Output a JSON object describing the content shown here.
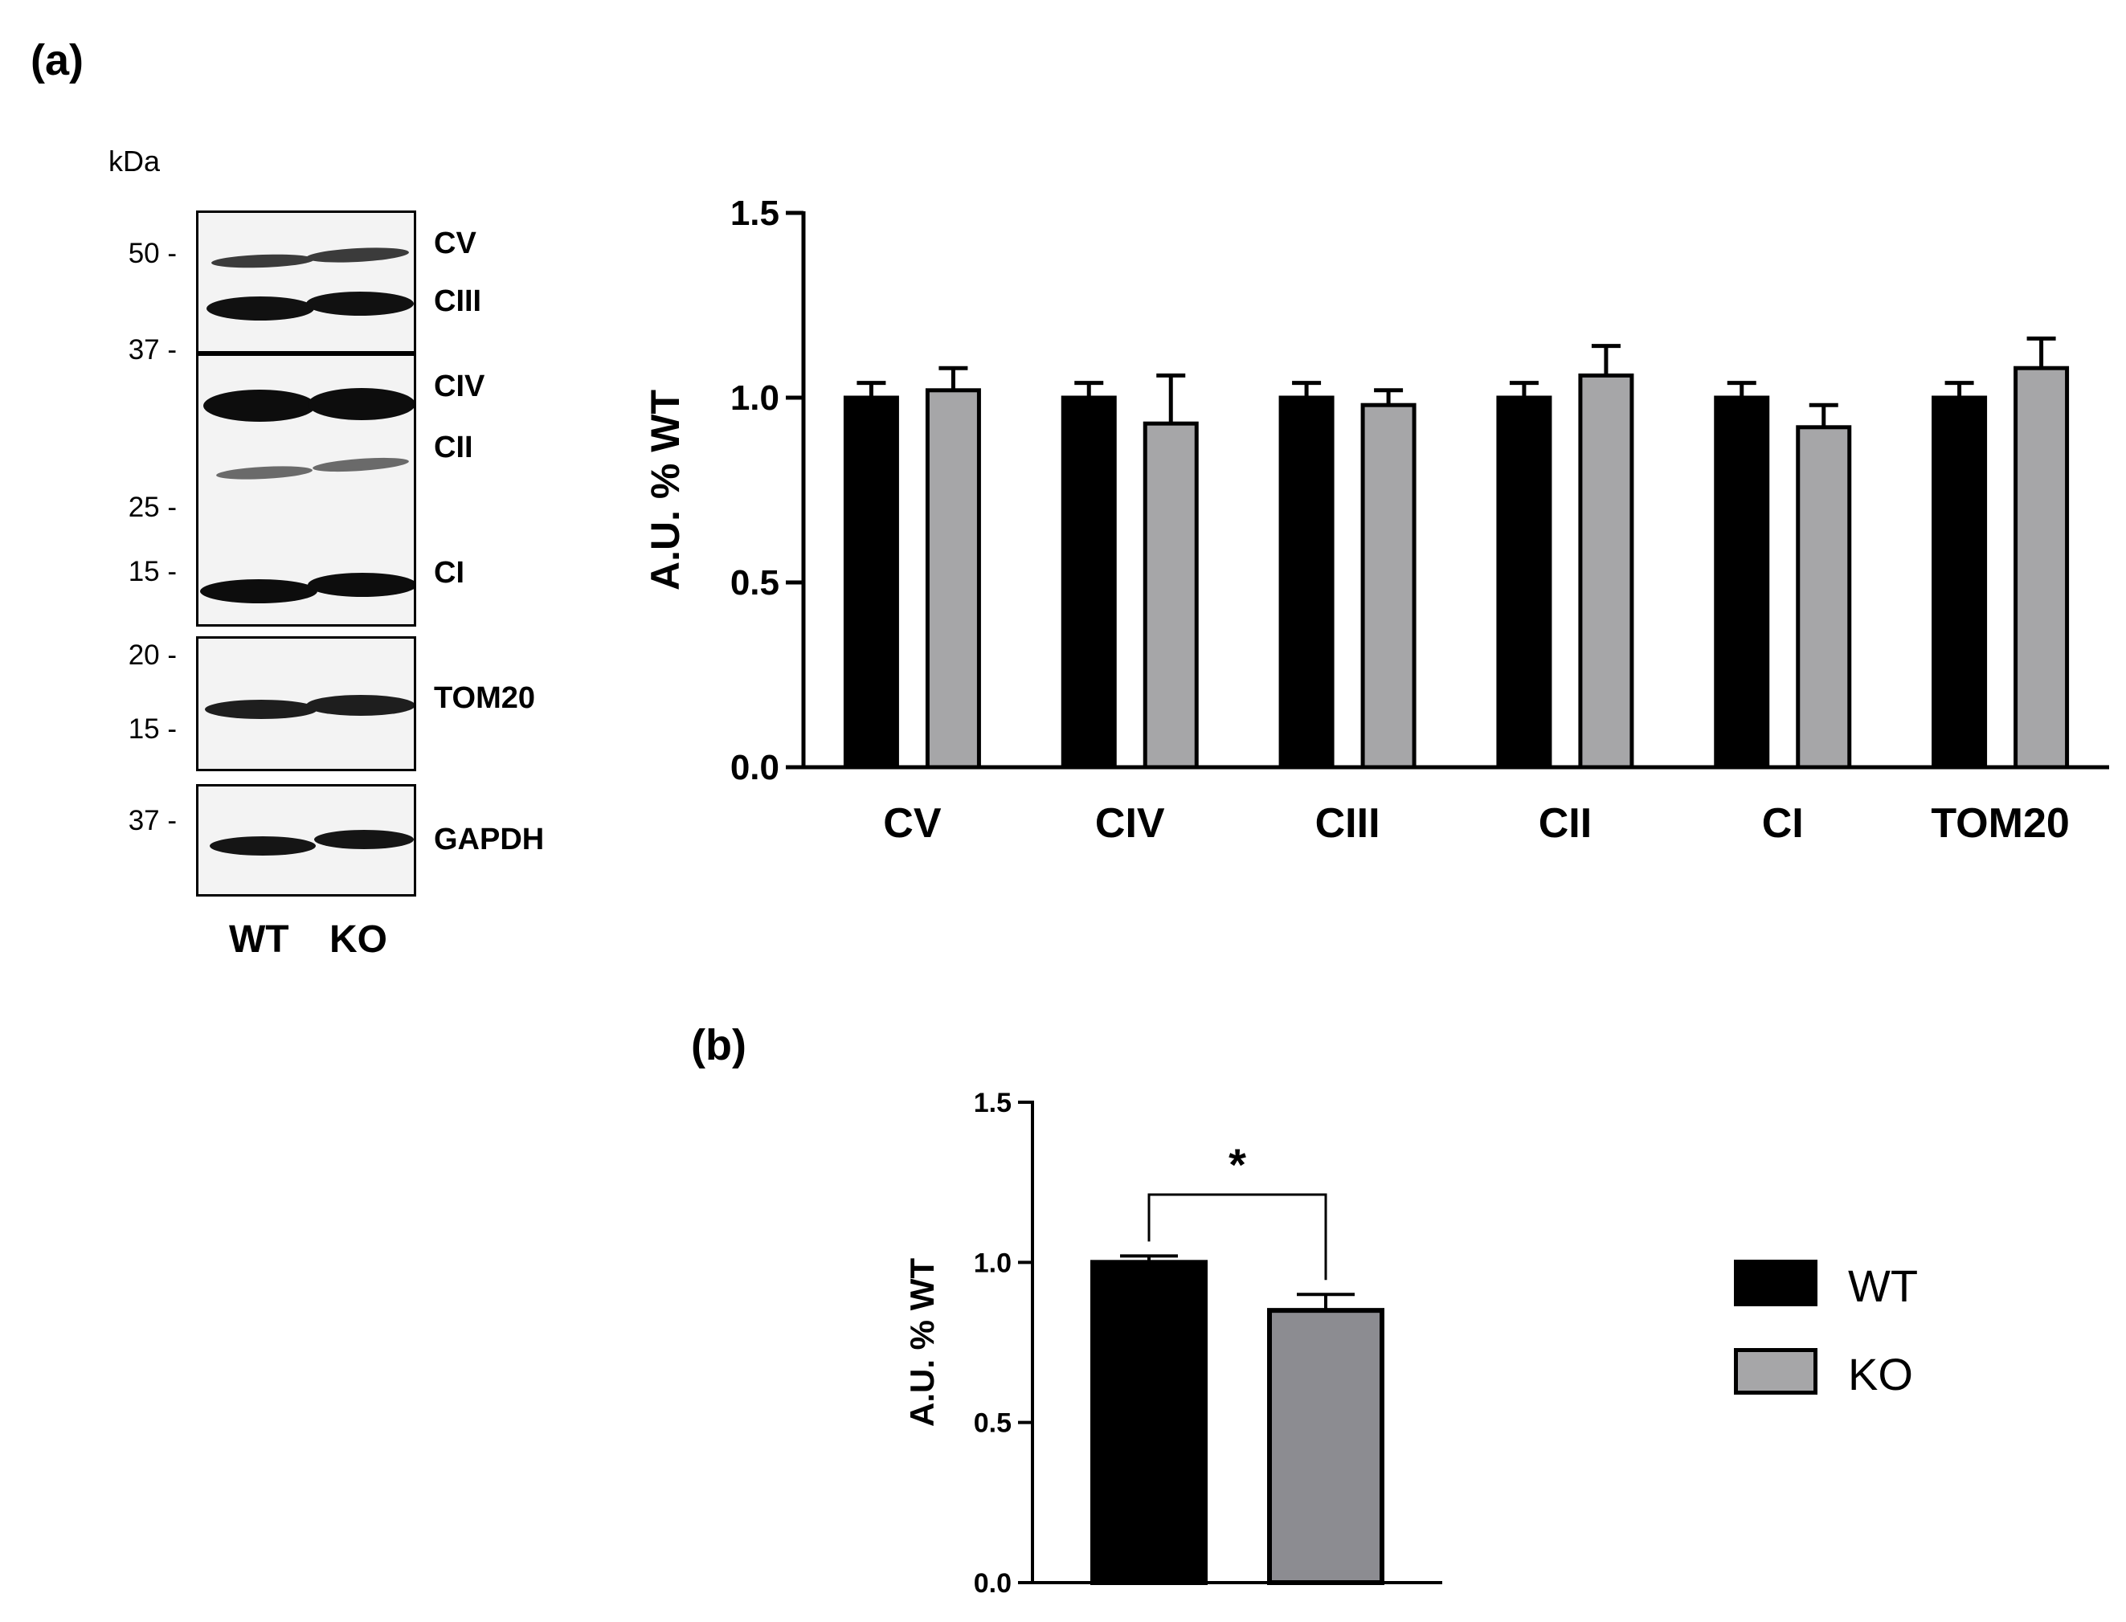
{
  "panel_labels": {
    "a": "(a)",
    "b": "(b)"
  },
  "blot": {
    "unit": "kDa",
    "markers": [
      {
        "label": "50 -",
        "panel": 0
      },
      {
        "label": "37 -",
        "panel": 0
      },
      {
        "label": "25 -",
        "panel": 1
      },
      {
        "label": "15 -",
        "panel": 1
      },
      {
        "label": "20 -",
        "panel": 2
      },
      {
        "label": "15 -",
        "panel": 2
      },
      {
        "label": "37 -",
        "panel": 3
      }
    ],
    "bands": [
      "CV",
      "CIII",
      "CIV",
      "CII",
      "CI",
      "TOM20",
      "GAPDH"
    ],
    "lanes": [
      "WT",
      "KO"
    ]
  },
  "legend": [
    {
      "label": "WT",
      "color": "#000000"
    },
    {
      "label": "KO",
      "color": "#a6a6a8"
    }
  ],
  "chart_data": [
    {
      "type": "bar",
      "ylabel": "A.U.  % WT",
      "ylim": [
        0,
        1.5
      ],
      "yticks": [
        "0.0",
        "0.5",
        "1.0",
        "1.5"
      ],
      "categories": [
        "CV",
        "CIV",
        "CIII",
        "CII",
        "CI",
        "TOM20"
      ],
      "series": [
        {
          "name": "WT",
          "color": "#000000",
          "values": [
            1.0,
            1.0,
            1.0,
            1.0,
            1.0,
            1.0
          ],
          "errors": [
            0.04,
            0.04,
            0.04,
            0.04,
            0.04,
            0.04
          ]
        },
        {
          "name": "KO",
          "color": "#a6a6a8",
          "values": [
            1.02,
            0.93,
            0.98,
            1.06,
            0.92,
            1.08
          ],
          "errors": [
            0.06,
            0.13,
            0.04,
            0.08,
            0.06,
            0.08
          ]
        }
      ]
    },
    {
      "type": "bar",
      "ylabel": "A.U. % WT",
      "ylim": [
        0,
        1.5
      ],
      "yticks": [
        "0.0",
        "0.5",
        "1.0",
        "1.5"
      ],
      "categories": [
        "WT",
        "KO"
      ],
      "values": [
        1.0,
        0.85
      ],
      "errors": [
        0.02,
        0.05
      ],
      "colors": [
        "#000000",
        "#8c8c91"
      ],
      "significance": "*"
    }
  ]
}
